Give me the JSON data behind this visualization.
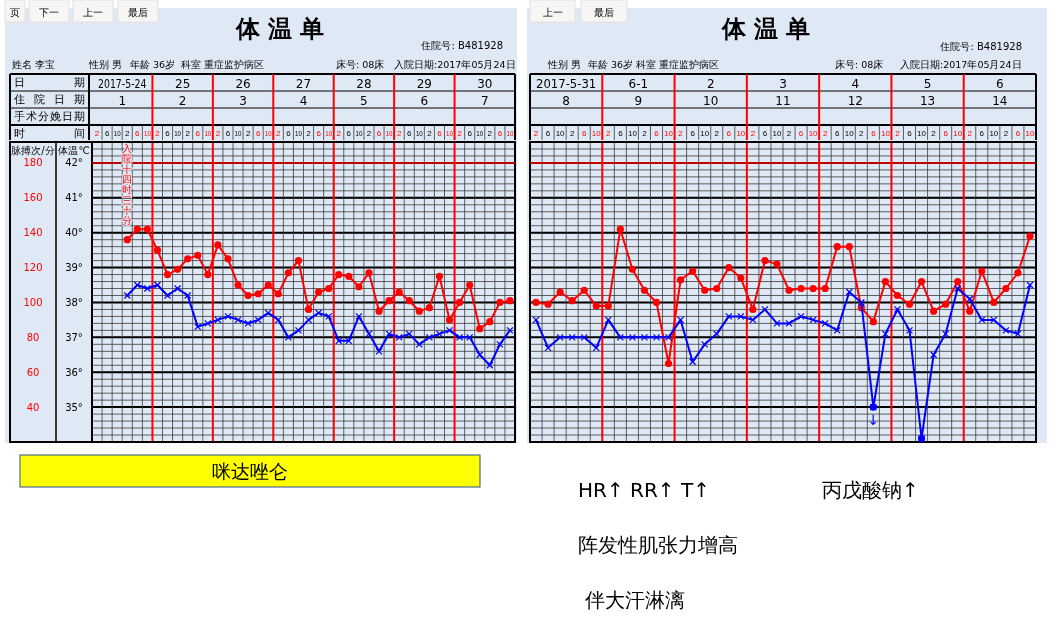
{
  "chart_data": [
    {
      "type": "line",
      "title": "体 温 单",
      "subtitle": "住院号: B481928",
      "xlabel": "时间",
      "ylabel": "体温℃",
      "y2label": "脉搏次/分",
      "categories": [
        "2",
        "6",
        "10",
        "2",
        "6",
        "10",
        "2",
        "6",
        "10",
        "2",
        "6",
        "10",
        "2",
        "6",
        "10",
        "2",
        "6",
        "10",
        "2",
        "6",
        "10",
        "2",
        "6",
        "10",
        "2",
        "6",
        "10",
        "2",
        "6",
        "10",
        "2",
        "6",
        "10",
        "2",
        "6",
        "10",
        "2",
        "6",
        "10",
        "2",
        "6",
        "10"
      ],
      "ylim": [
        34,
        42.6
      ],
      "yticks": [
        {
          "value": 35,
          "label": "35°"
        },
        {
          "value": 36,
          "label": "36°"
        },
        {
          "value": 37,
          "label": "37°"
        },
        {
          "value": 38,
          "label": "38°"
        },
        {
          "value": 39,
          "label": "39°"
        },
        {
          "value": 40,
          "label": "40°"
        },
        {
          "value": 41,
          "label": "41°"
        },
        {
          "value": 42,
          "label": "42°"
        }
      ],
      "y2lim": [
        20,
        192
      ],
      "y2ticks": [
        40,
        60,
        80,
        100,
        120,
        140,
        160,
        180
      ],
      "grid": true,
      "series": [
        {
          "color": "#ff0000",
          "axis": "y2",
          "marker": "circle",
          "values": [
            null,
            null,
            null,
            136,
            142,
            142,
            130,
            116,
            119,
            125,
            127,
            116,
            133,
            125,
            110,
            104,
            105,
            110,
            105,
            117,
            124,
            96,
            106,
            108,
            116,
            115,
            109,
            117,
            95,
            101,
            106,
            101,
            95,
            97,
            115,
            90,
            100,
            110,
            85,
            89,
            100,
            101
          ]
        },
        {
          "color": "#0000ff",
          "marker": "cross",
          "values": [
            null,
            null,
            null,
            38.2,
            38.5,
            38.4,
            38.5,
            38.2,
            38.4,
            38.2,
            37.3,
            37.4,
            37.5,
            37.6,
            37.5,
            37.4,
            37.5,
            37.7,
            37.5,
            37.0,
            37.2,
            37.5,
            37.7,
            37.6,
            36.9,
            36.9,
            37.6,
            37.1,
            36.6,
            37.1,
            37.0,
            37.1,
            36.8,
            37.0,
            37.1,
            37.2,
            37.0,
            37.0,
            36.5,
            36.2,
            36.8,
            37.2
          ]
        }
      ],
      "ref_lines": [
        {
          "axis": "y",
          "value": 42,
          "color": "#ff0000"
        }
      ],
      "annotations": [
        "页",
        "下一",
        "上一",
        "最后",
        "姓名 李宝",
        "性别 男",
        "年龄 36岁",
        "科室 重症监护病区",
        "床号: 08床",
        "入院日期:2017年05月24日",
        "日期",
        "2017-5-24",
        "25",
        "26",
        "27",
        "28",
        "29",
        "30",
        "住院日期",
        "1",
        "2",
        "3",
        "4",
        "5",
        "6",
        "7",
        "手术分娩日期",
        "入院十四时三十分",
        "咪达唑仑"
      ]
    },
    {
      "type": "line",
      "title": "体 温 单",
      "subtitle": "住院号: B481928",
      "tick_labels": "x",
      "categories": [
        "2",
        "6",
        "10",
        "2",
        "6",
        "10",
        "2",
        "6",
        "10",
        "2",
        "6",
        "10",
        "2",
        "6",
        "10",
        "2",
        "6",
        "10",
        "2",
        "6",
        "10",
        "2",
        "6",
        "10",
        "2",
        "6",
        "10",
        "2",
        "6",
        "10",
        "2",
        "6",
        "10",
        "2",
        "6",
        "10",
        "2",
        "6",
        "10",
        "2",
        "6",
        "10"
      ],
      "ylim": [
        34,
        42.6
      ],
      "yticks": [
        35,
        36,
        37,
        38,
        39,
        40,
        41,
        42
      ],
      "y2lim": [
        20,
        192
      ],
      "grid": true,
      "series": [
        {
          "color": "#ff0000",
          "axis": "y2",
          "marker": "circle",
          "values": [
            100,
            99,
            106,
            101,
            107,
            98,
            98,
            142,
            119,
            107,
            100,
            65,
            113,
            118,
            107,
            108,
            120,
            114,
            96,
            124,
            122,
            107,
            108,
            108,
            108,
            132,
            132,
            97,
            89,
            112,
            104,
            99,
            112,
            95,
            99,
            112,
            95,
            118,
            100,
            108,
            117,
            138
          ]
        },
        {
          "color": "#0000ff",
          "marker": "cross",
          "values": [
            37.5,
            36.7,
            37.0,
            37.0,
            37.0,
            36.7,
            37.5,
            37.0,
            37.0,
            37.0,
            37.0,
            37.0,
            37.5,
            36.3,
            36.8,
            37.1,
            37.6,
            37.6,
            37.5,
            37.8,
            37.4,
            37.4,
            37.6,
            37.5,
            37.4,
            37.2,
            38.3,
            38.0,
            35.0,
            37.1,
            37.8,
            37.2,
            34.1,
            36.5,
            37.1,
            38.4,
            38.1,
            37.5,
            37.5,
            37.2,
            37.1,
            38.5
          ]
        },
        {
          "type": "scatter",
          "color": "#0000ff",
          "marker": "circle",
          "values": [
            null,
            null,
            null,
            null,
            null,
            null,
            null,
            null,
            null,
            null,
            null,
            null,
            null,
            null,
            null,
            null,
            null,
            null,
            null,
            null,
            null,
            null,
            null,
            null,
            null,
            null,
            null,
            null,
            35.0,
            null,
            null,
            null,
            34.1,
            null,
            null,
            null,
            null,
            null,
            null,
            null,
            null,
            null
          ]
        }
      ],
      "ref_lines": [
        {
          "axis": "y",
          "value": 42,
          "color": "#ff0000"
        }
      ],
      "annotations": [
        "上一",
        "最后",
        "性别 男",
        "年龄 36岁",
        "科室 重症监护病区",
        "床号: 08床",
        "入院日期:2017年05月24日",
        "2017-5-31",
        "6-1",
        "2",
        "3",
        "4",
        "5",
        "6",
        "8",
        "9",
        "10",
        "11",
        "12",
        "13",
        "14",
        "↓",
        "HR↑ RR↑ T↑",
        "丙戊酸钠↑",
        "阵发性肌张力增高",
        "伴大汗淋漓"
      ]
    }
  ]
}
